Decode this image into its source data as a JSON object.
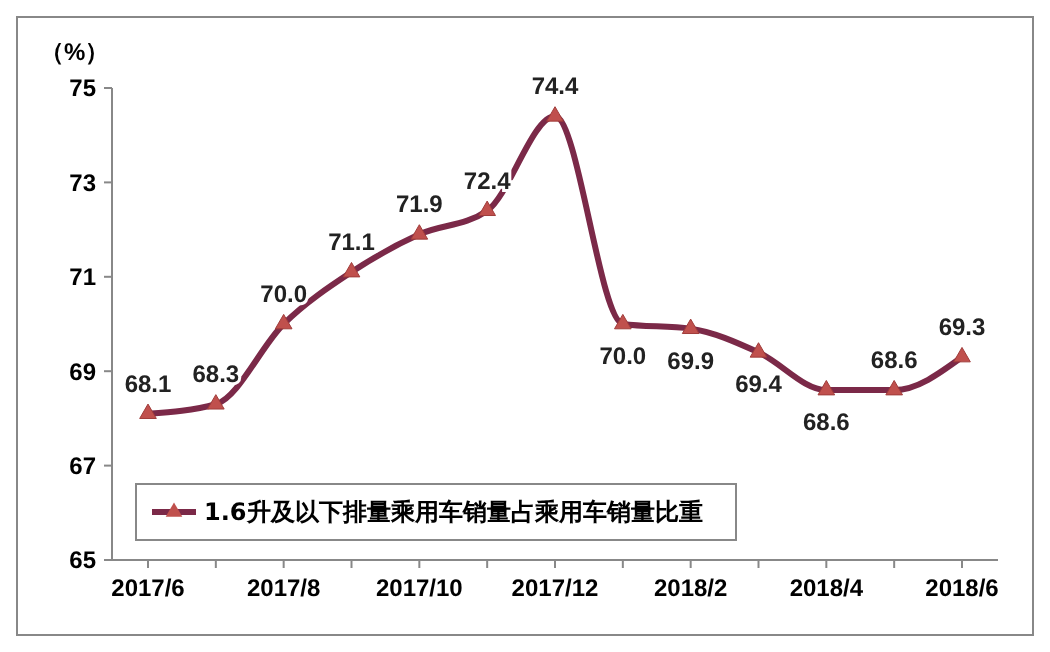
{
  "chart_data": {
    "type": "line",
    "ylabel": "（%）",
    "categories": [
      "2017/6",
      null,
      "2017/8",
      null,
      "2017/10",
      null,
      "2017/12",
      null,
      "2018/2",
      null,
      "2018/4",
      null,
      "2018/6"
    ],
    "series": [
      {
        "name": "1.6升及以下排量乘用车销量占乘用车销量比重",
        "color": "#7b2948",
        "values": [
          68.1,
          68.3,
          70.0,
          71.1,
          71.9,
          72.4,
          74.4,
          70.0,
          69.9,
          69.4,
          68.6,
          68.6,
          69.3
        ],
        "value_labels": [
          "68.1",
          "68.3",
          "70.0",
          "71.1",
          "71.9",
          "72.4",
          "74.4",
          "70.0",
          "69.9",
          "69.4",
          "68.6",
          "68.6",
          "69.3"
        ]
      }
    ],
    "ylim": [
      65,
      75
    ],
    "yticks": [
      65,
      67,
      69,
      71,
      73,
      75
    ],
    "grid": false,
    "legend": "bottom left",
    "marker": "triangle",
    "line_style": "solid"
  }
}
